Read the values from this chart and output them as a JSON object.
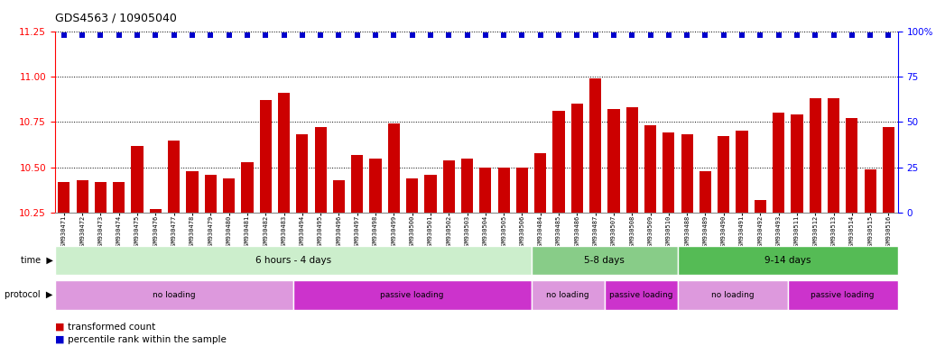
{
  "title": "GDS4563 / 10905040",
  "samples": [
    "GSM930471",
    "GSM930472",
    "GSM930473",
    "GSM930474",
    "GSM930475",
    "GSM930476",
    "GSM930477",
    "GSM930478",
    "GSM930479",
    "GSM930480",
    "GSM930481",
    "GSM930482",
    "GSM930483",
    "GSM930494",
    "GSM930495",
    "GSM930496",
    "GSM930497",
    "GSM930498",
    "GSM930499",
    "GSM930500",
    "GSM930501",
    "GSM930502",
    "GSM930503",
    "GSM930504",
    "GSM930505",
    "GSM930506",
    "GSM930484",
    "GSM930485",
    "GSM930486",
    "GSM930487",
    "GSM930507",
    "GSM930508",
    "GSM930509",
    "GSM930510",
    "GSM930488",
    "GSM930489",
    "GSM930490",
    "GSM930491",
    "GSM930492",
    "GSM930493",
    "GSM930511",
    "GSM930512",
    "GSM930513",
    "GSM930514",
    "GSM930515",
    "GSM930516"
  ],
  "values": [
    10.42,
    10.43,
    10.42,
    10.42,
    10.62,
    10.27,
    10.65,
    10.48,
    10.46,
    10.44,
    10.53,
    10.87,
    10.91,
    10.68,
    10.72,
    10.43,
    10.57,
    10.55,
    10.74,
    10.44,
    10.46,
    10.54,
    10.55,
    10.5,
    10.5,
    10.5,
    10.58,
    10.81,
    10.85,
    10.99,
    10.82,
    10.83,
    10.73,
    10.69,
    10.68,
    10.48,
    10.67,
    10.7,
    10.32,
    10.8,
    10.79,
    10.88,
    10.88,
    10.77,
    10.49,
    10.72
  ],
  "ylim": [
    10.25,
    11.25
  ],
  "yticks": [
    10.25,
    10.5,
    10.75,
    11.0,
    11.25
  ],
  "right_yticks": [
    0,
    25,
    50,
    75,
    100
  ],
  "bar_color": "#cc0000",
  "dot_color": "#0000cc",
  "background_color": "#ffffff",
  "time_groups": [
    {
      "label": "6 hours - 4 days",
      "start": 0,
      "end": 26,
      "color": "#cceecc"
    },
    {
      "label": "5-8 days",
      "start": 26,
      "end": 34,
      "color": "#88cc88"
    },
    {
      "label": "9-14 days",
      "start": 34,
      "end": 46,
      "color": "#55bb55"
    }
  ],
  "protocol_groups": [
    {
      "label": "no loading",
      "start": 0,
      "end": 13,
      "color": "#dd99dd"
    },
    {
      "label": "passive loading",
      "start": 13,
      "end": 26,
      "color": "#cc33cc"
    },
    {
      "label": "no loading",
      "start": 26,
      "end": 30,
      "color": "#dd99dd"
    },
    {
      "label": "passive loading",
      "start": 30,
      "end": 34,
      "color": "#cc33cc"
    },
    {
      "label": "no loading",
      "start": 34,
      "end": 40,
      "color": "#dd99dd"
    },
    {
      "label": "passive loading",
      "start": 40,
      "end": 46,
      "color": "#cc33cc"
    }
  ]
}
